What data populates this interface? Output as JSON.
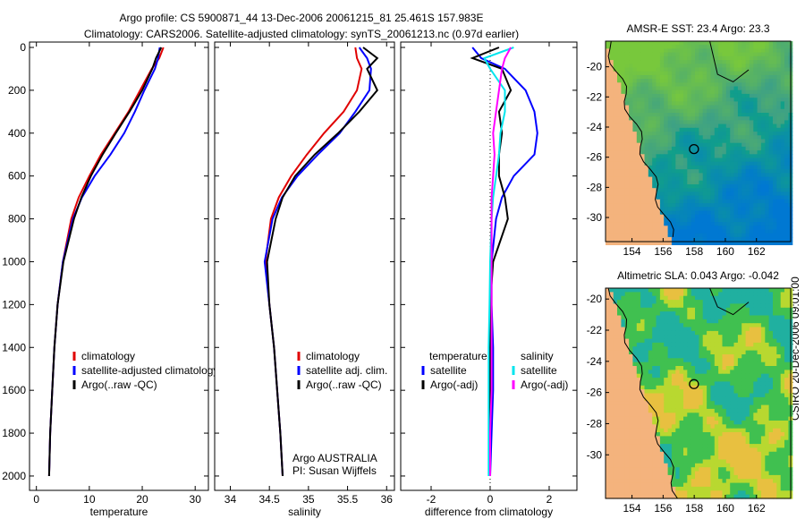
{
  "header": {
    "title_line1": "Argo profile: CS 5900871_44 13-Dec-2006 20061215_81 25.461S 157.983E",
    "title_line2": "Climatology: CARS2006. Satellite-adjusted climatology: synTS_20061213.nc (0.97d earlier)"
  },
  "footer_stamp": "CSIRO 20-Dec-2006 09:01:00",
  "colors": {
    "climatology": "#e00000",
    "satellite": "#0000ff",
    "argo": "#000000",
    "sal_satellite": "#00e5ee",
    "sal_argo": "#ff00ff"
  },
  "chart_data": [
    {
      "type": "line",
      "id": "temperature",
      "xlabel": "temperature",
      "xlim": [
        -1.3,
        32.5
      ],
      "ylim": [
        2067,
        -25
      ],
      "xticks": [
        0,
        10,
        20,
        30
      ],
      "yticks": [
        0,
        200,
        400,
        600,
        800,
        1000,
        1200,
        1400,
        1600,
        1800,
        2000
      ],
      "depth": [
        0,
        50,
        100,
        200,
        300,
        400,
        500,
        600,
        700,
        800,
        1000,
        1200,
        1400,
        1600,
        1800,
        2000
      ],
      "series": [
        {
          "name": "climatology",
          "color": "#e00000",
          "values": [
            24.0,
            23.2,
            21.8,
            19.6,
            17.4,
            14.8,
            12.2,
            10.0,
            8.0,
            6.6,
            5.0,
            4.0,
            3.4,
            3.0,
            2.6,
            2.4
          ]
        },
        {
          "name": "satellite-adjusted climatology",
          "color": "#0000ff",
          "values": [
            23.3,
            23.0,
            22.4,
            20.4,
            18.6,
            16.6,
            14.0,
            11.0,
            8.6,
            6.9,
            5.0,
            4.0,
            3.4,
            3.0,
            2.6,
            2.4
          ]
        },
        {
          "name": "Argo(..raw -QC)",
          "color": "#000000",
          "values": [
            23.6,
            22.6,
            21.9,
            20.0,
            17.6,
            15.0,
            12.5,
            10.3,
            8.5,
            7.1,
            5.1,
            4.0,
            3.4,
            3.0,
            2.6,
            2.4
          ]
        }
      ],
      "legend": [
        "climatology",
        "satellite-adjusted climatology",
        "Argo(..raw -QC)"
      ]
    },
    {
      "type": "line",
      "id": "salinity",
      "xlabel": "salinity",
      "xlim": [
        33.8,
        36.1
      ],
      "ylim": [
        2067,
        -25
      ],
      "xticks": [
        34,
        34.5,
        35,
        35.5,
        36
      ],
      "depth": [
        0,
        50,
        100,
        200,
        300,
        400,
        500,
        600,
        700,
        800,
        1000,
        1200,
        1400,
        1600,
        1800,
        2000
      ],
      "series": [
        {
          "name": "climatology",
          "color": "#e00000",
          "values": [
            35.6,
            35.62,
            35.68,
            35.62,
            35.45,
            35.2,
            34.98,
            34.78,
            34.62,
            34.52,
            34.45,
            34.5,
            34.56,
            34.6,
            34.64,
            34.67
          ]
        },
        {
          "name": "satellite adj. clim.",
          "color": "#0000ff",
          "values": [
            35.65,
            35.75,
            35.8,
            35.78,
            35.6,
            35.4,
            35.12,
            34.86,
            34.66,
            34.54,
            34.44,
            34.5,
            34.56,
            34.6,
            34.64,
            34.67
          ]
        },
        {
          "name": "Argo(..raw -QC)",
          "color": "#000000",
          "values": [
            35.7,
            35.88,
            35.75,
            35.88,
            35.65,
            35.38,
            35.08,
            34.83,
            34.67,
            34.58,
            34.47,
            34.5,
            34.56,
            34.6,
            34.64,
            34.67
          ]
        }
      ],
      "legend": [
        "climatology",
        "satellite adj. clim.",
        "Argo(..raw -QC)"
      ],
      "annotation": [
        "Argo AUSTRALIA",
        "PI: Susan Wijffels"
      ]
    },
    {
      "type": "line",
      "id": "difference",
      "xlabel": "difference from climatology",
      "xlim": [
        -3.03,
        2.94
      ],
      "ylim": [
        2067,
        -25
      ],
      "xticks": [
        -2,
        0,
        2
      ],
      "depth": [
        0,
        50,
        100,
        200,
        300,
        400,
        500,
        600,
        700,
        800,
        1000,
        1200,
        1400,
        1600,
        1800,
        2000
      ],
      "series": [
        {
          "name": "temperature satellite",
          "color": "#0000ff",
          "values": [
            -0.6,
            -0.3,
            0.5,
            1.2,
            1.5,
            1.6,
            1.5,
            0.8,
            0.4,
            0.2,
            0.05,
            0.05,
            0.1,
            0.1,
            0.05,
            0.0
          ]
        },
        {
          "name": "temperature Argo(-adj)",
          "color": "#000000",
          "values": [
            0.3,
            -0.6,
            0.4,
            0.7,
            0.3,
            0.4,
            0.3,
            0.3,
            0.5,
            0.6,
            0.1,
            0.0,
            0.0,
            0.0,
            0.0,
            0.0
          ]
        },
        {
          "name": "salinity satellite",
          "color": "#00e5ee",
          "values": [
            0.8,
            -0.2,
            0.0,
            0.5,
            0.5,
            0.35,
            0.3,
            0.2,
            0.1,
            0.05,
            0.0,
            -0.02,
            -0.05,
            -0.05,
            -0.05,
            -0.05
          ]
        },
        {
          "name": "salinity Argo(-adj)",
          "color": "#ff00ff",
          "values": [
            0.7,
            0.5,
            0.4,
            0.3,
            0.2,
            0.1,
            0.15,
            0.1,
            0.05,
            0.05,
            0.05,
            0.05,
            0.05,
            0.05,
            0.0,
            0.0
          ]
        }
      ],
      "legend_headers": [
        "temperature",
        "salinity"
      ],
      "legend_left": [
        "satellite",
        "Argo(-adj)"
      ],
      "legend_right": [
        "satellite",
        "Argo(-adj)"
      ]
    },
    {
      "type": "heatmap",
      "id": "sst_map",
      "title": "AMSR-E SST: 23.4 Argo: 23.3",
      "xlim": [
        152.3,
        164.2
      ],
      "ylim": [
        -31.6,
        -18.3
      ],
      "xticks": [
        154,
        156,
        158,
        160,
        162
      ],
      "yticks": [
        -20,
        -22,
        -24,
        -26,
        -28,
        -30
      ],
      "marker": [
        157.983,
        -25.461
      ]
    },
    {
      "type": "heatmap",
      "id": "sla_map",
      "title": "Altimetric SLA: 0.043 Argo: -0.042",
      "xlim": [
        152.3,
        164.2
      ],
      "ylim": [
        -32.8,
        -19.3
      ],
      "xticks": [
        154,
        156,
        158,
        160,
        162
      ],
      "yticks": [
        -20,
        -22,
        -24,
        -26,
        -28,
        -30
      ],
      "marker": [
        157.983,
        -25.461
      ]
    }
  ]
}
